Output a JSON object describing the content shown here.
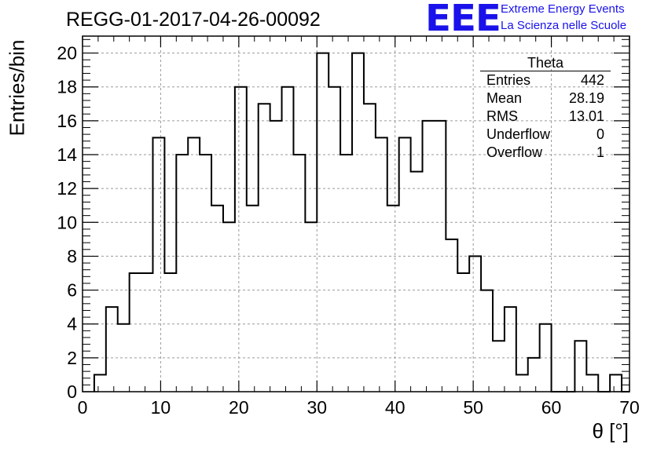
{
  "title": "REGG-01-2017-04-26-00092",
  "logo": {
    "mark": "EEE",
    "line1": "Extreme Energy Events",
    "line2": "La Scienza nelle Scuole",
    "color": "#1a12ea"
  },
  "stats": {
    "name": "Theta",
    "entries_label": "Entries",
    "entries": "442",
    "mean_label": "Mean",
    "mean": "28.19",
    "rms_label": "RMS",
    "rms": "13.01",
    "underflow_label": "Underflow",
    "underflow": "0",
    "overflow_label": "Overflow",
    "overflow": "1"
  },
  "chart_data": {
    "type": "bar",
    "style": "step-histogram",
    "xlabel": "θ [°]",
    "ylabel": "Entries/bin",
    "xlim": [
      0,
      70
    ],
    "ylim": [
      0,
      21
    ],
    "bin_width": 1.5,
    "x_ticks": [
      "0",
      "10",
      "20",
      "30",
      "40",
      "50",
      "60",
      "70"
    ],
    "y_ticks": [
      "0",
      "2",
      "4",
      "6",
      "8",
      "10",
      "12",
      "14",
      "16",
      "18",
      "20"
    ],
    "grid": true,
    "bins": [
      {
        "x0": 1.5,
        "y": 1
      },
      {
        "x0": 3.0,
        "y": 5
      },
      {
        "x0": 4.5,
        "y": 4
      },
      {
        "x0": 6.0,
        "y": 7
      },
      {
        "x0": 7.5,
        "y": 7
      },
      {
        "x0": 9.0,
        "y": 15
      },
      {
        "x0": 10.5,
        "y": 7
      },
      {
        "x0": 12.0,
        "y": 14
      },
      {
        "x0": 13.5,
        "y": 15
      },
      {
        "x0": 15.0,
        "y": 14
      },
      {
        "x0": 16.5,
        "y": 11
      },
      {
        "x0": 18.0,
        "y": 10
      },
      {
        "x0": 19.5,
        "y": 18
      },
      {
        "x0": 21.0,
        "y": 11
      },
      {
        "x0": 22.5,
        "y": 17
      },
      {
        "x0": 24.0,
        "y": 16
      },
      {
        "x0": 25.5,
        "y": 18
      },
      {
        "x0": 27.0,
        "y": 14
      },
      {
        "x0": 28.5,
        "y": 10
      },
      {
        "x0": 30.0,
        "y": 20
      },
      {
        "x0": 31.5,
        "y": 18
      },
      {
        "x0": 33.0,
        "y": 14
      },
      {
        "x0": 34.5,
        "y": 20
      },
      {
        "x0": 36.0,
        "y": 17
      },
      {
        "x0": 37.5,
        "y": 15
      },
      {
        "x0": 39.0,
        "y": 11
      },
      {
        "x0": 40.5,
        "y": 15
      },
      {
        "x0": 42.0,
        "y": 13
      },
      {
        "x0": 43.5,
        "y": 16
      },
      {
        "x0": 45.0,
        "y": 16
      },
      {
        "x0": 46.5,
        "y": 9
      },
      {
        "x0": 48.0,
        "y": 7
      },
      {
        "x0": 49.5,
        "y": 8
      },
      {
        "x0": 51.0,
        "y": 6
      },
      {
        "x0": 52.5,
        "y": 3
      },
      {
        "x0": 54.0,
        "y": 5
      },
      {
        "x0": 55.5,
        "y": 1
      },
      {
        "x0": 57.0,
        "y": 2
      },
      {
        "x0": 58.5,
        "y": 4
      },
      {
        "x0": 60.0,
        "y": 0
      },
      {
        "x0": 61.5,
        "y": 0
      },
      {
        "x0": 63.0,
        "y": 3
      },
      {
        "x0": 64.5,
        "y": 1
      },
      {
        "x0": 66.0,
        "y": 0
      },
      {
        "x0": 67.5,
        "y": 1
      },
      {
        "x0": 69.0,
        "y": 0
      }
    ]
  }
}
